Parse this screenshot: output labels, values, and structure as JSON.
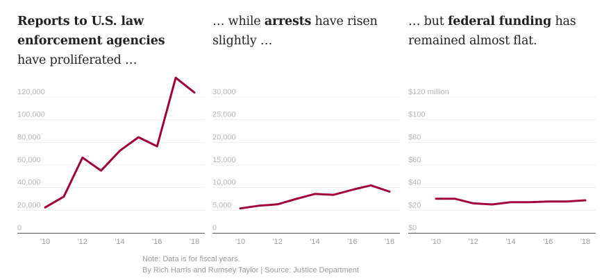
{
  "colors": {
    "line": "#a1003c",
    "grid": "#ececec",
    "axis": "#555555"
  },
  "panels": [
    {
      "title": {
        "s0": "",
        "b": "Reports to U.S. law enforcement agencies",
        "s1": " have proliferated  …"
      }
    },
    {
      "title": {
        "s0": "…  while ",
        "b": "arrests",
        "s1": " have risen slightly  …"
      }
    },
    {
      "title": {
        "s0": "…  but ",
        "b": "federal funding",
        "s1": " has remained almost flat."
      }
    }
  ],
  "notes": {
    "note": "Note: Data is for fiscal years.",
    "credit": "By Rich Harris and Rumsey Taylor | Source: Justice Department"
  },
  "chart_data": [
    {
      "type": "line",
      "x": [
        2010,
        2011,
        2012,
        2013,
        2014,
        2015,
        2016,
        2017,
        2018
      ],
      "xticks": [
        "'10",
        "'12",
        "'14",
        "'16",
        "'18"
      ],
      "xtick_values": [
        2010,
        2012,
        2014,
        2016,
        2018
      ],
      "ylim": [
        0,
        120000
      ],
      "yticks": [
        0,
        20000,
        40000,
        60000,
        80000,
        100000,
        120000
      ],
      "ytick_labels": [
        "0",
        "20,000",
        "40,000",
        "60,000",
        "80,000",
        "100,000",
        "120,000"
      ],
      "values": [
        22500,
        32000,
        66500,
        55000,
        72500,
        84500,
        76500,
        137000,
        124000
      ],
      "grid": true
    },
    {
      "type": "line",
      "x": [
        2010,
        2011,
        2012,
        2013,
        2014,
        2015,
        2016,
        2017,
        2018
      ],
      "xticks": [
        "'10",
        "'12",
        "'14",
        "'16",
        "'18"
      ],
      "xtick_values": [
        2010,
        2012,
        2014,
        2016,
        2018
      ],
      "ylim": [
        0,
        30000
      ],
      "yticks": [
        0,
        5000,
        10000,
        15000,
        20000,
        25000,
        30000
      ],
      "ytick_labels": [
        "0",
        "5,000",
        "10,000",
        "15,000",
        "20,000",
        "25,000",
        "30,000"
      ],
      "values": [
        5400,
        6000,
        6300,
        7500,
        8600,
        8400,
        9500,
        10500,
        9100
      ],
      "grid": true
    },
    {
      "type": "line",
      "x": [
        2010,
        2011,
        2012,
        2013,
        2014,
        2015,
        2016,
        2017,
        2018
      ],
      "xticks": [
        "'10",
        "'12",
        "'14",
        "'16",
        "'18"
      ],
      "xtick_values": [
        2010,
        2012,
        2014,
        2016,
        2018
      ],
      "ylim": [
        0,
        120
      ],
      "yticks": [
        0,
        20,
        40,
        60,
        80,
        100,
        120
      ],
      "ytick_labels": [
        "$0",
        "$20",
        "$40",
        "$60",
        "$80",
        "$100",
        "$120 million"
      ],
      "values": [
        30.2,
        30.2,
        26.1,
        25.1,
        27.1,
        27.1,
        27.7,
        27.7,
        28.8
      ],
      "grid": true
    }
  ]
}
